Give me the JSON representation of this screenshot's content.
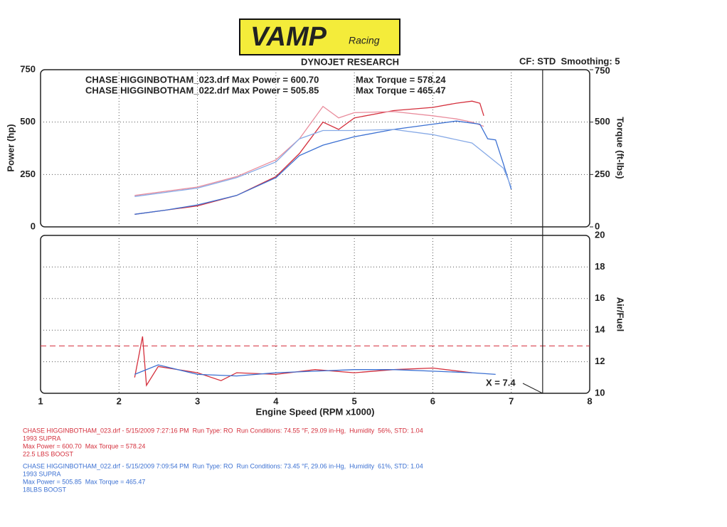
{
  "header": {
    "logo": "VAMP",
    "logo_sub": "Racing",
    "title": "DYNOJET RESEARCH",
    "settings": "CF: STD  Smoothing: 5"
  },
  "chart_data": [
    {
      "type": "line",
      "ylabel": "Power (hp)",
      "y2label": "Torque (ft-lbs)",
      "xlim": [
        1,
        8
      ],
      "ylim": [
        0,
        750
      ],
      "yticks": [
        0,
        250,
        500,
        750
      ],
      "y2lim": [
        0,
        750
      ],
      "y2ticks": [
        0,
        250,
        500,
        750
      ],
      "grid": true,
      "annotations": [
        "CHASE HIGGINBOTHAM_023.drf Max Power = 600.70",
        "Max Torque = 578.24",
        "CHASE HIGGINBOTHAM_022.drf Max Power = 505.85",
        "Max Torque = 465.47"
      ],
      "series": [
        {
          "color": "#d42f3c",
          "x": [
            2.2,
            2.6,
            3,
            3.5,
            4,
            4.3,
            4.6,
            4.8,
            5,
            5.5,
            6,
            6.3,
            6.5,
            6.6,
            6.65
          ],
          "values": [
            60,
            80,
            100,
            150,
            240,
            350,
            500,
            465,
            520,
            555,
            570,
            590,
            600,
            590,
            530
          ]
        },
        {
          "color": "#e98c9c",
          "axis": "y2",
          "x": [
            2.2,
            2.6,
            3,
            3.5,
            4,
            4.3,
            4.6,
            4.8,
            5,
            5.5,
            6,
            6.3,
            6.5,
            6.65
          ],
          "values": [
            150,
            170,
            190,
            240,
            320,
            420,
            575,
            520,
            545,
            550,
            530,
            515,
            500,
            480
          ]
        },
        {
          "color": "#3b70d2",
          "x": [
            2.2,
            2.6,
            3,
            3.5,
            4,
            4.3,
            4.6,
            5,
            5.5,
            6,
            6.3,
            6.6,
            6.7,
            6.8,
            6.9,
            7.0
          ],
          "values": [
            60,
            80,
            105,
            150,
            235,
            340,
            390,
            430,
            465,
            490,
            505,
            490,
            420,
            415,
            300,
            180
          ]
        },
        {
          "color": "#86a9e6",
          "axis": "y2",
          "x": [
            2.2,
            2.6,
            3,
            3.5,
            4,
            4.3,
            4.6,
            5,
            5.5,
            6,
            6.5,
            6.7,
            6.9,
            7.0
          ],
          "values": [
            145,
            165,
            185,
            235,
            310,
            420,
            460,
            460,
            465,
            440,
            400,
            340,
            280,
            190
          ]
        }
      ]
    },
    {
      "type": "line",
      "ylabel": "Air/Fuel",
      "xlabel": "Engine Speed (RPM x1000)",
      "xlim": [
        1,
        8
      ],
      "xticks": [
        1,
        2,
        3,
        4,
        5,
        6,
        7,
        8
      ],
      "ylim": [
        10,
        20
      ],
      "yticks": [
        10,
        12,
        14,
        16,
        18,
        20
      ],
      "grid": true,
      "reference_line": 13,
      "reference_color": "#d42f3c",
      "cursor": {
        "value": 7.4,
        "label": "X = 7.4"
      },
      "series": [
        {
          "color": "#d42f3c",
          "x": [
            2.2,
            2.3,
            2.35,
            2.5,
            3,
            3.3,
            3.5,
            4,
            4.5,
            5,
            5.5,
            6,
            6.5
          ],
          "values": [
            11.0,
            13.6,
            10.5,
            11.7,
            11.3,
            10.8,
            11.3,
            11.2,
            11.5,
            11.3,
            11.5,
            11.6,
            11.3
          ]
        },
        {
          "color": "#3b70d2",
          "x": [
            2.2,
            2.5,
            3,
            3.5,
            4,
            4.5,
            5,
            5.5,
            6,
            6.5,
            6.8
          ],
          "values": [
            11.2,
            11.8,
            11.2,
            11.1,
            11.3,
            11.4,
            11.5,
            11.5,
            11.4,
            11.3,
            11.2
          ]
        }
      ]
    }
  ],
  "notes": [
    {
      "color": "#d42f3c",
      "lines": [
        "CHASE HIGGINBOTHAM_023.drf - 5/15/2009 7:27:16 PM  Run Type: RO  Run Conditions: 74.55 °F, 29.09 in-Hg,  Humidity  56%, STD: 1.04",
        "1993 SUPRA",
        "Max Power = 600.70  Max Torque = 578.24",
        "22.5 LBS BOOST"
      ]
    },
    {
      "color": "#3b70d2",
      "lines": [
        "CHASE HIGGINBOTHAM_022.drf - 5/15/2009 7:09:54 PM  Run Type: RO  Run Conditions: 73.45 °F, 29.06 in-Hg,  Humidity  61%, STD: 1.04",
        "1993 SUPRA",
        "Max Power = 505.85  Max Torque = 465.47",
        "18LBS BOOST"
      ]
    }
  ]
}
